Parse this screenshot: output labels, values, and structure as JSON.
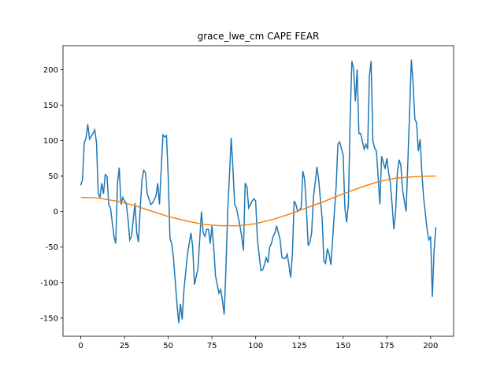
{
  "chart_data": {
    "type": "line",
    "title": "grace_lwe_cm CAPE FEAR",
    "xlim": [
      -10.15,
      213.15
    ],
    "ylim": [
      -175.6,
      233.6
    ],
    "xticks": [
      0,
      25,
      50,
      75,
      100,
      125,
      150,
      175,
      200
    ],
    "yticks": [
      -150,
      -100,
      -50,
      0,
      50,
      100,
      150,
      200
    ],
    "series": [
      {
        "color": "#1f77b4",
        "x": [
          0,
          1,
          2,
          3,
          4,
          5,
          7,
          8,
          9,
          10,
          11,
          12,
          13,
          14,
          15,
          16,
          17,
          19,
          20,
          21,
          22,
          23,
          24,
          25,
          26,
          27,
          28,
          29,
          31,
          32,
          33,
          34,
          35,
          36,
          37,
          38,
          39,
          40,
          41,
          43,
          44,
          45,
          46,
          47,
          48,
          49,
          50,
          51,
          52,
          53,
          55,
          56,
          57,
          58,
          59,
          60,
          61,
          62,
          63,
          64,
          65,
          67,
          68,
          69,
          70,
          71,
          72,
          73,
          74,
          75,
          76,
          77,
          79,
          80,
          81,
          82,
          83,
          84,
          85,
          86,
          87,
          88,
          89,
          91,
          92,
          93,
          94,
          95,
          96,
          97,
          98,
          99,
          100,
          101,
          103,
          104,
          105,
          106,
          107,
          108,
          109,
          110,
          111,
          112,
          114,
          115,
          116,
          117,
          118,
          119,
          120,
          121,
          122,
          123,
          124,
          126,
          127,
          128,
          129,
          130,
          131,
          132,
          133,
          134,
          135,
          136,
          138,
          139,
          140,
          141,
          142,
          143,
          144,
          145,
          146,
          147,
          148,
          150,
          151,
          152,
          153,
          154,
          155,
          156,
          157,
          158,
          159,
          160,
          162,
          163,
          164,
          165,
          166,
          167,
          168,
          169,
          170,
          171,
          172,
          174,
          175,
          176,
          177,
          178,
          179,
          180,
          181,
          182,
          183,
          184,
          186,
          187,
          188,
          189,
          190,
          191,
          192,
          193,
          194,
          195,
          196,
          198,
          199,
          200,
          201,
          202,
          203
        ],
        "values": [
          37,
          45,
          97,
          103,
          123,
          102,
          110,
          115,
          97,
          25,
          20,
          40,
          25,
          52,
          50,
          10,
          5,
          -35,
          -45,
          40,
          62,
          10,
          20,
          15,
          12,
          -10,
          -40,
          -35,
          12,
          -30,
          -43,
          5,
          45,
          58,
          55,
          25,
          18,
          10,
          12,
          22,
          40,
          10,
          60,
          108,
          105,
          107,
          50,
          -38,
          -45,
          -65,
          -130,
          -157,
          -130,
          -152,
          -110,
          -85,
          -60,
          -45,
          -30,
          -50,
          -103,
          -80,
          -40,
          0,
          -30,
          -35,
          -25,
          -25,
          -45,
          -20,
          -50,
          -90,
          -115,
          -110,
          -125,
          -145,
          -80,
          0,
          50,
          104,
          60,
          10,
          5,
          -20,
          -35,
          -55,
          40,
          35,
          5,
          10,
          15,
          18,
          15,
          -40,
          -83,
          -82,
          -75,
          -65,
          -72,
          -50,
          -45,
          -35,
          -30,
          -20,
          -40,
          -65,
          -66,
          -66,
          -60,
          -75,
          -93,
          -60,
          15,
          10,
          0,
          5,
          57,
          45,
          5,
          -48,
          -43,
          -30,
          20,
          40,
          63,
          45,
          -10,
          -70,
          -73,
          -52,
          -60,
          -75,
          -40,
          0,
          35,
          95,
          98,
          80,
          5,
          -15,
          10,
          130,
          212,
          200,
          155,
          200,
          110,
          110,
          88,
          95,
          88,
          190,
          212,
          100,
          90,
          85,
          50,
          10,
          78,
          60,
          75,
          55,
          40,
          10,
          -25,
          0,
          55,
          73,
          65,
          30,
          0,
          70,
          140,
          214,
          180,
          130,
          125,
          85,
          102,
          55,
          20,
          -25,
          -40,
          -35,
          -120,
          -55,
          -22
        ]
      },
      {
        "color": "#ff7f0e",
        "x": [
          0,
          10,
          20,
          30,
          40,
          50,
          60,
          70,
          80,
          90,
          100,
          110,
          120,
          130,
          140,
          150,
          160,
          170,
          180,
          190,
          200,
          203
        ],
        "values": [
          20,
          19,
          15,
          9,
          1,
          -7,
          -13,
          -18,
          -20,
          -20,
          -17,
          -11,
          -3,
          6,
          15,
          25,
          34,
          42,
          47,
          49,
          50,
          50
        ]
      }
    ]
  }
}
